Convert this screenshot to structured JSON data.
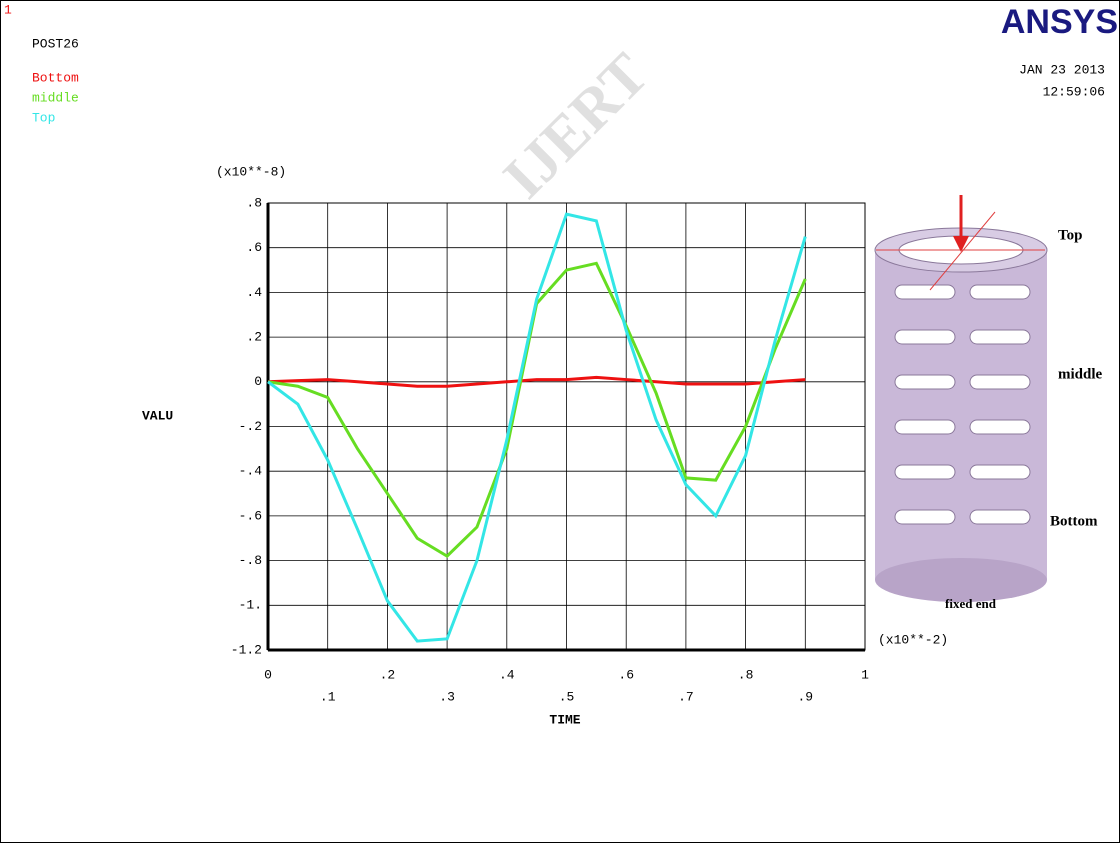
{
  "window_number": "1",
  "program": "POST26",
  "logo": "ANSYS",
  "date": "JAN 23 2013",
  "time": "12:59:06",
  "watermark": "IJERT",
  "chart_data": {
    "type": "line",
    "x": [
      0,
      0.05,
      0.1,
      0.15,
      0.2,
      0.25,
      0.3,
      0.35,
      0.4,
      0.45,
      0.5,
      0.55,
      0.6,
      0.65,
      0.7,
      0.75,
      0.8,
      0.85,
      0.9
    ],
    "series": [
      {
        "name": "Bottom",
        "color": "#ee1111",
        "values": [
          0,
          0.005,
          0.01,
          0,
          -0.01,
          -0.02,
          -0.02,
          -0.01,
          0,
          0.01,
          0.01,
          0.02,
          0.01,
          0,
          -0.01,
          -0.01,
          -0.01,
          0,
          0.01
        ]
      },
      {
        "name": "middle",
        "color": "#66dd22",
        "values": [
          0,
          -0.02,
          -0.07,
          -0.3,
          -0.5,
          -0.7,
          -0.78,
          -0.65,
          -0.3,
          0.35,
          0.5,
          0.53,
          0.25,
          -0.05,
          -0.43,
          -0.44,
          -0.2,
          0.15,
          0.46
        ]
      },
      {
        "name": "Top",
        "color": "#33e6e6",
        "values": [
          0,
          -0.1,
          -0.35,
          -0.66,
          -0.98,
          -1.16,
          -1.15,
          -0.8,
          -0.26,
          0.37,
          0.75,
          0.72,
          0.23,
          -0.17,
          -0.46,
          -0.6,
          -0.33,
          0.19,
          0.65
        ]
      }
    ],
    "xlim": [
      0,
      1
    ],
    "ylim": [
      -1.2,
      0.8
    ],
    "xticks": [
      0,
      {
        "value": 0.1,
        "label": ".1"
      },
      {
        "value": 0.2,
        "label": ".2"
      },
      {
        "value": 0.3,
        "label": ".3"
      },
      {
        "value": 0.4,
        "label": ".4"
      },
      {
        "value": 0.5,
        "label": ".5"
      },
      {
        "value": 0.6,
        "label": ".6"
      },
      {
        "value": 0.7,
        "label": ".7"
      },
      {
        "value": 0.8,
        "label": ".8"
      },
      {
        "value": 0.9,
        "label": ".9"
      },
      1
    ],
    "yticks": [
      {
        "value": 0.8,
        "label": ".8"
      },
      {
        "value": 0.6,
        "label": ".6"
      },
      {
        "value": 0.4,
        "label": ".4"
      },
      {
        "value": 0.2,
        "label": ".2"
      },
      0,
      {
        "value": -0.2,
        "label": "-.2"
      },
      {
        "value": -0.4,
        "label": "-.4"
      },
      {
        "value": -0.6,
        "label": "-.6"
      },
      {
        "value": -0.8,
        "label": "-.8"
      },
      {
        "value": -1,
        "label": "-1."
      },
      -1.2
    ],
    "xlabel": "TIME",
    "ylabel": "VALU",
    "x_multiplier": "(x10**-2)",
    "y_multiplier": "(x10**-8)",
    "grid": true
  },
  "inset": {
    "labels": [
      "Top",
      "middle",
      "Bottom",
      "fixed end"
    ]
  }
}
